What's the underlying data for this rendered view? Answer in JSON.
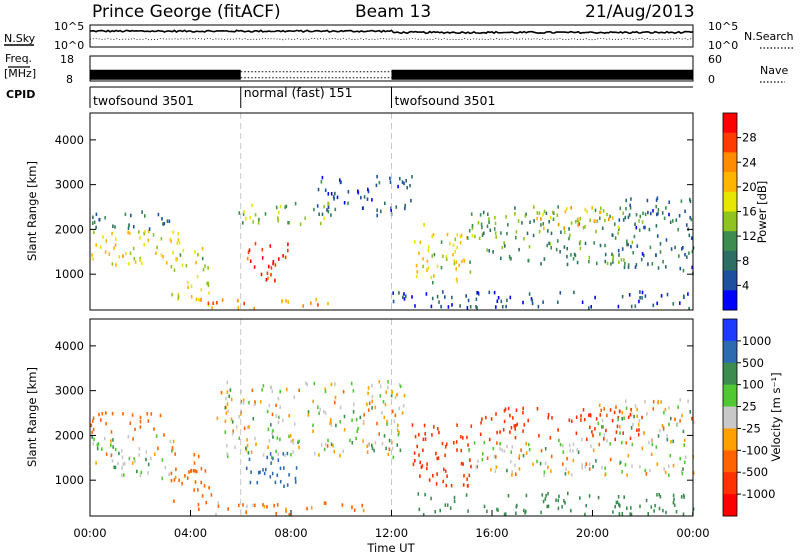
{
  "chart_data": [
    {
      "type": "header",
      "title": "Prince George (fitACF)",
      "beam": "Beam 13",
      "date": "21/Aug/2013"
    },
    {
      "type": "line",
      "name": "nsky-nsearch",
      "left_label": "N.Sky",
      "right_label": "N.Search",
      "left_ticks": [
        "10^5",
        "10^0"
      ],
      "right_ticks": [
        "10^5",
        "10^0"
      ],
      "left_ylim": [
        0,
        5
      ],
      "level_nsky": 3.6,
      "level_nsearch": 1.8
    },
    {
      "type": "line",
      "name": "freq-nave",
      "left_label_1": "Freq.",
      "left_label_2": "[MHz]",
      "right_label": "Nave",
      "left_ticks": [
        "18",
        "8"
      ],
      "right_ticks": [
        "60",
        "0"
      ],
      "freq_ylim": [
        8,
        18
      ],
      "segments": [
        {
          "start_h": 0,
          "end_h": 6,
          "freq": 10.5,
          "style": "solid"
        },
        {
          "start_h": 6,
          "end_h": 12,
          "freq": 10.5,
          "style": "dotted"
        },
        {
          "start_h": 12,
          "end_h": 24,
          "freq": 10.5,
          "style": "solid"
        }
      ]
    },
    {
      "type": "table",
      "name": "cpid",
      "label": "CPID",
      "entries": [
        {
          "start_h": 0,
          "text": "twofsound 3501"
        },
        {
          "start_h": 6,
          "text": "normal (fast) 151"
        },
        {
          "start_h": 12,
          "text": "twofsound 3501"
        }
      ]
    },
    {
      "type": "heatmap",
      "name": "power",
      "ylabel": "Slant Range [km]",
      "ylim": [
        200,
        4600
      ],
      "yticks": [
        1000,
        2000,
        3000,
        4000
      ],
      "xlim_hours": [
        0,
        24
      ],
      "colorbar_label": "Power [dB]",
      "colorbar_ticks": [
        "28",
        "24",
        "20",
        "16",
        "12",
        "8",
        "4"
      ],
      "colorbar_colors": [
        "#ff0000",
        "#ff3c00",
        "#ff8c00",
        "#ffb400",
        "#e6e600",
        "#8fc31f",
        "#3c8c50",
        "#2c6e63",
        "#1e50a0",
        "#0000ff"
      ],
      "blobs": [
        {
          "t0": 0,
          "t1": 3.6,
          "r0": 1150,
          "r1": 2000,
          "v": 18
        },
        {
          "t0": 0,
          "t1": 3.2,
          "r0": 2000,
          "r1": 2450,
          "v": 9
        },
        {
          "t0": 3.2,
          "t1": 4.8,
          "r0": 400,
          "r1": 1600,
          "v": 16
        },
        {
          "t0": 6.2,
          "t1": 7.9,
          "r0": 800,
          "r1": 1700,
          "v": 27
        },
        {
          "t0": 4.2,
          "t1": 10.0,
          "r0": 220,
          "r1": 450,
          "v": 22
        },
        {
          "t0": 5.8,
          "t1": 9.6,
          "r0": 2100,
          "r1": 2600,
          "v": 14
        },
        {
          "t0": 9.0,
          "t1": 12.8,
          "r0": 2300,
          "r1": 3200,
          "v": 7
        },
        {
          "t0": 12.8,
          "t1": 15.2,
          "r0": 800,
          "r1": 2100,
          "v": 17
        },
        {
          "t0": 12.0,
          "t1": 24.0,
          "r0": 220,
          "r1": 600,
          "v": 6
        },
        {
          "t0": 15.0,
          "t1": 22.0,
          "r0": 1200,
          "r1": 2500,
          "v": 12
        },
        {
          "t0": 17.5,
          "t1": 21.0,
          "r0": 2000,
          "r1": 2500,
          "v": 19
        },
        {
          "t0": 21.0,
          "t1": 24.0,
          "r0": 1000,
          "r1": 2700,
          "v": 8
        }
      ]
    },
    {
      "type": "heatmap",
      "name": "velocity",
      "xlabel": "Time UT",
      "ylabel": "Slant Range [km]",
      "ylim": [
        200,
        4600
      ],
      "yticks": [
        1000,
        2000,
        3000,
        4000
      ],
      "xticks": [
        "00:00",
        "04:00",
        "08:00",
        "12:00",
        "16:00",
        "20:00",
        "00:00"
      ],
      "xlim_hours": [
        0,
        24
      ],
      "colorbar_label": "Velocity [m s⁻¹]",
      "colorbar_ticks": [
        "1000",
        "500",
        "100",
        "25",
        "-25",
        "-100",
        "-500",
        "-1000"
      ],
      "colorbar_colors": [
        "#1e3cff",
        "#2d6bb0",
        "#3c8c50",
        "#50c832",
        "#c8c8c8",
        "#ffa000",
        "#ff6400",
        "#ff3200",
        "#ff0000"
      ],
      "blobs": [
        {
          "t0": 0,
          "t1": 3.4,
          "r0": 1000,
          "r1": 2000,
          "v": 0
        },
        {
          "t0": 0,
          "t1": 3.0,
          "r0": 2000,
          "r1": 2500,
          "v": -150
        },
        {
          "t0": 3.2,
          "t1": 4.8,
          "r0": 500,
          "r1": 1600,
          "v": -200
        },
        {
          "t0": 6.2,
          "t1": 8.2,
          "r0": 800,
          "r1": 1700,
          "v": 400
        },
        {
          "t0": 4.2,
          "t1": 11.0,
          "r0": 220,
          "r1": 500,
          "v": -80
        },
        {
          "t0": 5.0,
          "t1": 12.5,
          "r0": 1500,
          "r1": 3200,
          "v": 0
        },
        {
          "t0": 12.8,
          "t1": 15.2,
          "r0": 800,
          "r1": 2300,
          "v": -400
        },
        {
          "t0": 15.5,
          "t1": 22.0,
          "r0": 1900,
          "r1": 2600,
          "v": -600
        },
        {
          "t0": 15.0,
          "t1": 24.0,
          "r0": 1100,
          "r1": 1900,
          "v": 0
        },
        {
          "t0": 20.0,
          "t1": 24.0,
          "r0": 1800,
          "r1": 2800,
          "v": 0
        },
        {
          "t0": 13.0,
          "t1": 24.0,
          "r0": 220,
          "r1": 700,
          "v": 150
        }
      ]
    }
  ]
}
